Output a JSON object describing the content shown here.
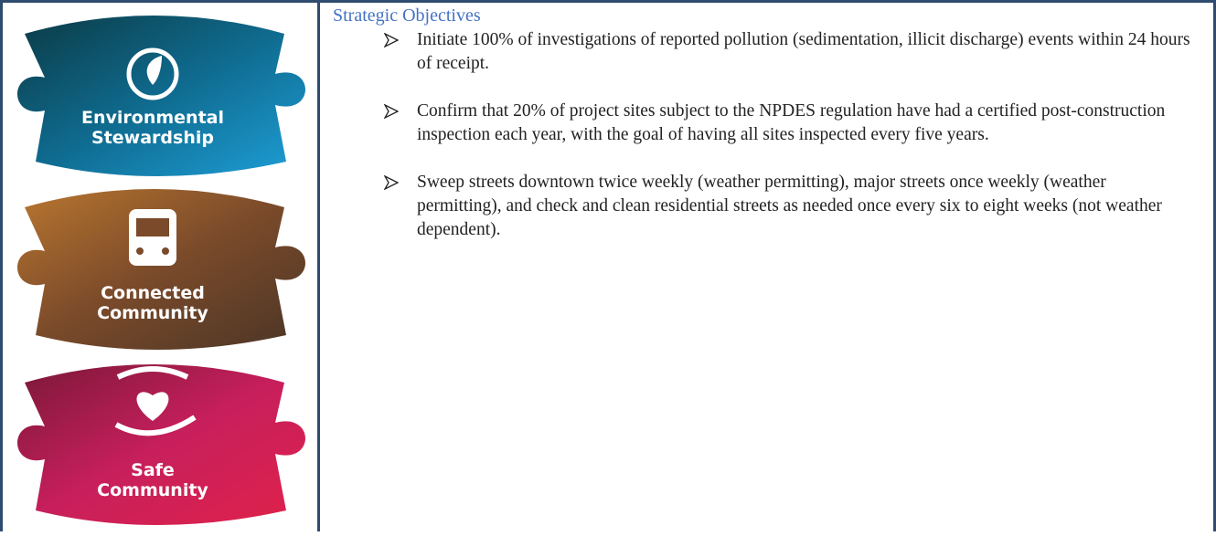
{
  "tiles": [
    {
      "label": [
        "Environmental",
        "Stewardship"
      ]
    },
    {
      "label": [
        "Connected",
        "Community"
      ]
    },
    {
      "label": [
        "Safe",
        "Community"
      ]
    }
  ],
  "content": {
    "heading": "Strategic Objectives",
    "bullets": [
      "Initiate 100% of investigations of reported pollution (sedimentation, illicit discharge) events within 24 hours of receipt.",
      "Confirm that 20% of project sites subject to the NPDES regulation have had a certified post-construction inspection each year, with the goal of having all sites inspected every five years.",
      "Sweep streets downtown twice weekly (weather permitting), major streets once weekly (weather permitting), and check and clean residential streets as needed once every six to eight weeks (not weather dependent)."
    ]
  }
}
